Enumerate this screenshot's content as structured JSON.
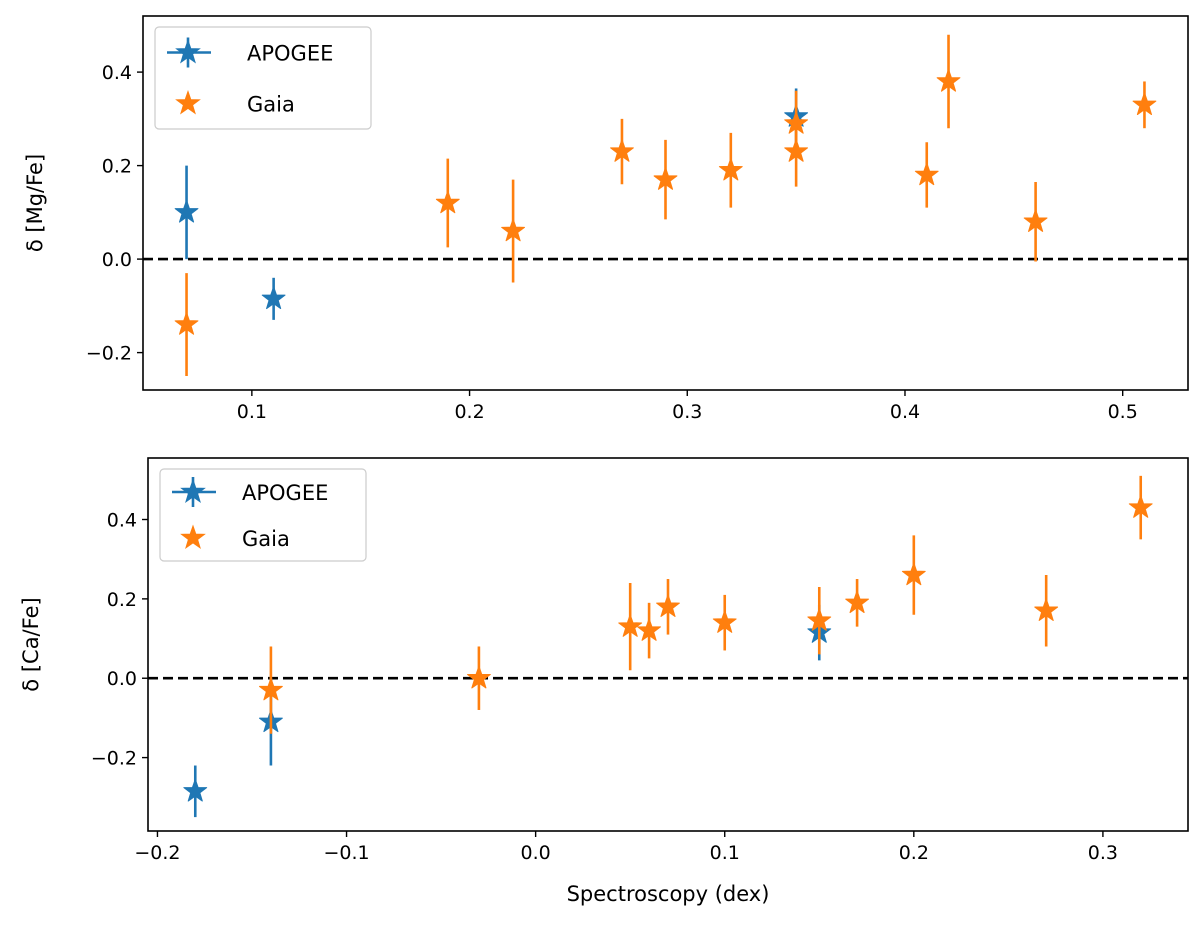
{
  "chart_data": [
    {
      "type": "scatter",
      "title": "",
      "xlabel": "",
      "ylabel": "δ [Mg/Fe]",
      "xlim": [
        0.05,
        0.53
      ],
      "ylim": [
        -0.28,
        0.52
      ],
      "xticks": [
        0.1,
        0.2,
        0.3,
        0.4,
        0.5
      ],
      "xtick_labels": [
        "0.1",
        "0.2",
        "0.3",
        "0.4",
        "0.5"
      ],
      "yticks": [
        -0.2,
        0.0,
        0.2,
        0.4
      ],
      "ytick_labels": [
        "−0.2",
        "0.0",
        "0.2",
        "0.4"
      ],
      "reference_line": 0.0,
      "legend": {
        "position": "top-left",
        "entries": [
          "APOGEE",
          "Gaia"
        ]
      },
      "series": [
        {
          "name": "APOGEE",
          "color": "#1f77b4",
          "points": [
            {
              "x": 0.07,
              "y": 0.1,
              "err": 0.1
            },
            {
              "x": 0.11,
              "y": -0.085,
              "err": 0.045
            },
            {
              "x": 0.35,
              "y": 0.305,
              "err": 0.06
            }
          ]
        },
        {
          "name": "Gaia",
          "color": "#ff7f0e",
          "points": [
            {
              "x": 0.07,
              "y": -0.14,
              "err": 0.11
            },
            {
              "x": 0.19,
              "y": 0.12,
              "err": 0.095
            },
            {
              "x": 0.22,
              "y": 0.06,
              "err": 0.11
            },
            {
              "x": 0.27,
              "y": 0.23,
              "err": 0.07
            },
            {
              "x": 0.29,
              "y": 0.17,
              "err": 0.085
            },
            {
              "x": 0.32,
              "y": 0.19,
              "err": 0.08
            },
            {
              "x": 0.35,
              "y": 0.29,
              "err": 0.07
            },
            {
              "x": 0.35,
              "y": 0.23,
              "err": 0.075
            },
            {
              "x": 0.41,
              "y": 0.18,
              "err": 0.07
            },
            {
              "x": 0.42,
              "y": 0.38,
              "err": 0.1
            },
            {
              "x": 0.46,
              "y": 0.08,
              "err": 0.085
            },
            {
              "x": 0.51,
              "y": 0.33,
              "err": 0.05
            }
          ]
        }
      ]
    },
    {
      "type": "scatter",
      "title": "",
      "xlabel": "Spectroscopy (dex)",
      "ylabel": "δ [Ca/Fe]",
      "xlim": [
        -0.205,
        0.345
      ],
      "ylim": [
        -0.385,
        0.555
      ],
      "xticks": [
        -0.2,
        -0.1,
        0.0,
        0.1,
        0.2,
        0.3
      ],
      "xtick_labels": [
        "−0.2",
        "−0.1",
        "0.0",
        "0.1",
        "0.2",
        "0.3"
      ],
      "yticks": [
        -0.2,
        0.0,
        0.2,
        0.4
      ],
      "ytick_labels": [
        "−0.2",
        "0.0",
        "0.2",
        "0.4"
      ],
      "reference_line": 0.0,
      "legend": {
        "position": "top-left",
        "entries": [
          "APOGEE",
          "Gaia"
        ]
      },
      "series": [
        {
          "name": "APOGEE",
          "color": "#1f77b4",
          "points": [
            {
              "x": -0.18,
              "y": -0.285,
              "err": 0.065
            },
            {
              "x": -0.14,
              "y": -0.11,
              "err": 0.11
            },
            {
              "x": 0.15,
              "y": 0.115,
              "err": 0.07
            }
          ]
        },
        {
          "name": "Gaia",
          "color": "#ff7f0e",
          "points": [
            {
              "x": -0.14,
              "y": -0.03,
              "err": 0.11
            },
            {
              "x": -0.03,
              "y": 0.0,
              "err": 0.08
            },
            {
              "x": 0.05,
              "y": 0.13,
              "err": 0.11
            },
            {
              "x": 0.06,
              "y": 0.12,
              "err": 0.07
            },
            {
              "x": 0.07,
              "y": 0.18,
              "err": 0.07
            },
            {
              "x": 0.1,
              "y": 0.14,
              "err": 0.07
            },
            {
              "x": 0.15,
              "y": 0.145,
              "err": 0.085
            },
            {
              "x": 0.17,
              "y": 0.19,
              "err": 0.06
            },
            {
              "x": 0.2,
              "y": 0.26,
              "err": 0.1
            },
            {
              "x": 0.27,
              "y": 0.17,
              "err": 0.09
            },
            {
              "x": 0.32,
              "y": 0.43,
              "err": 0.08
            }
          ]
        }
      ]
    }
  ]
}
